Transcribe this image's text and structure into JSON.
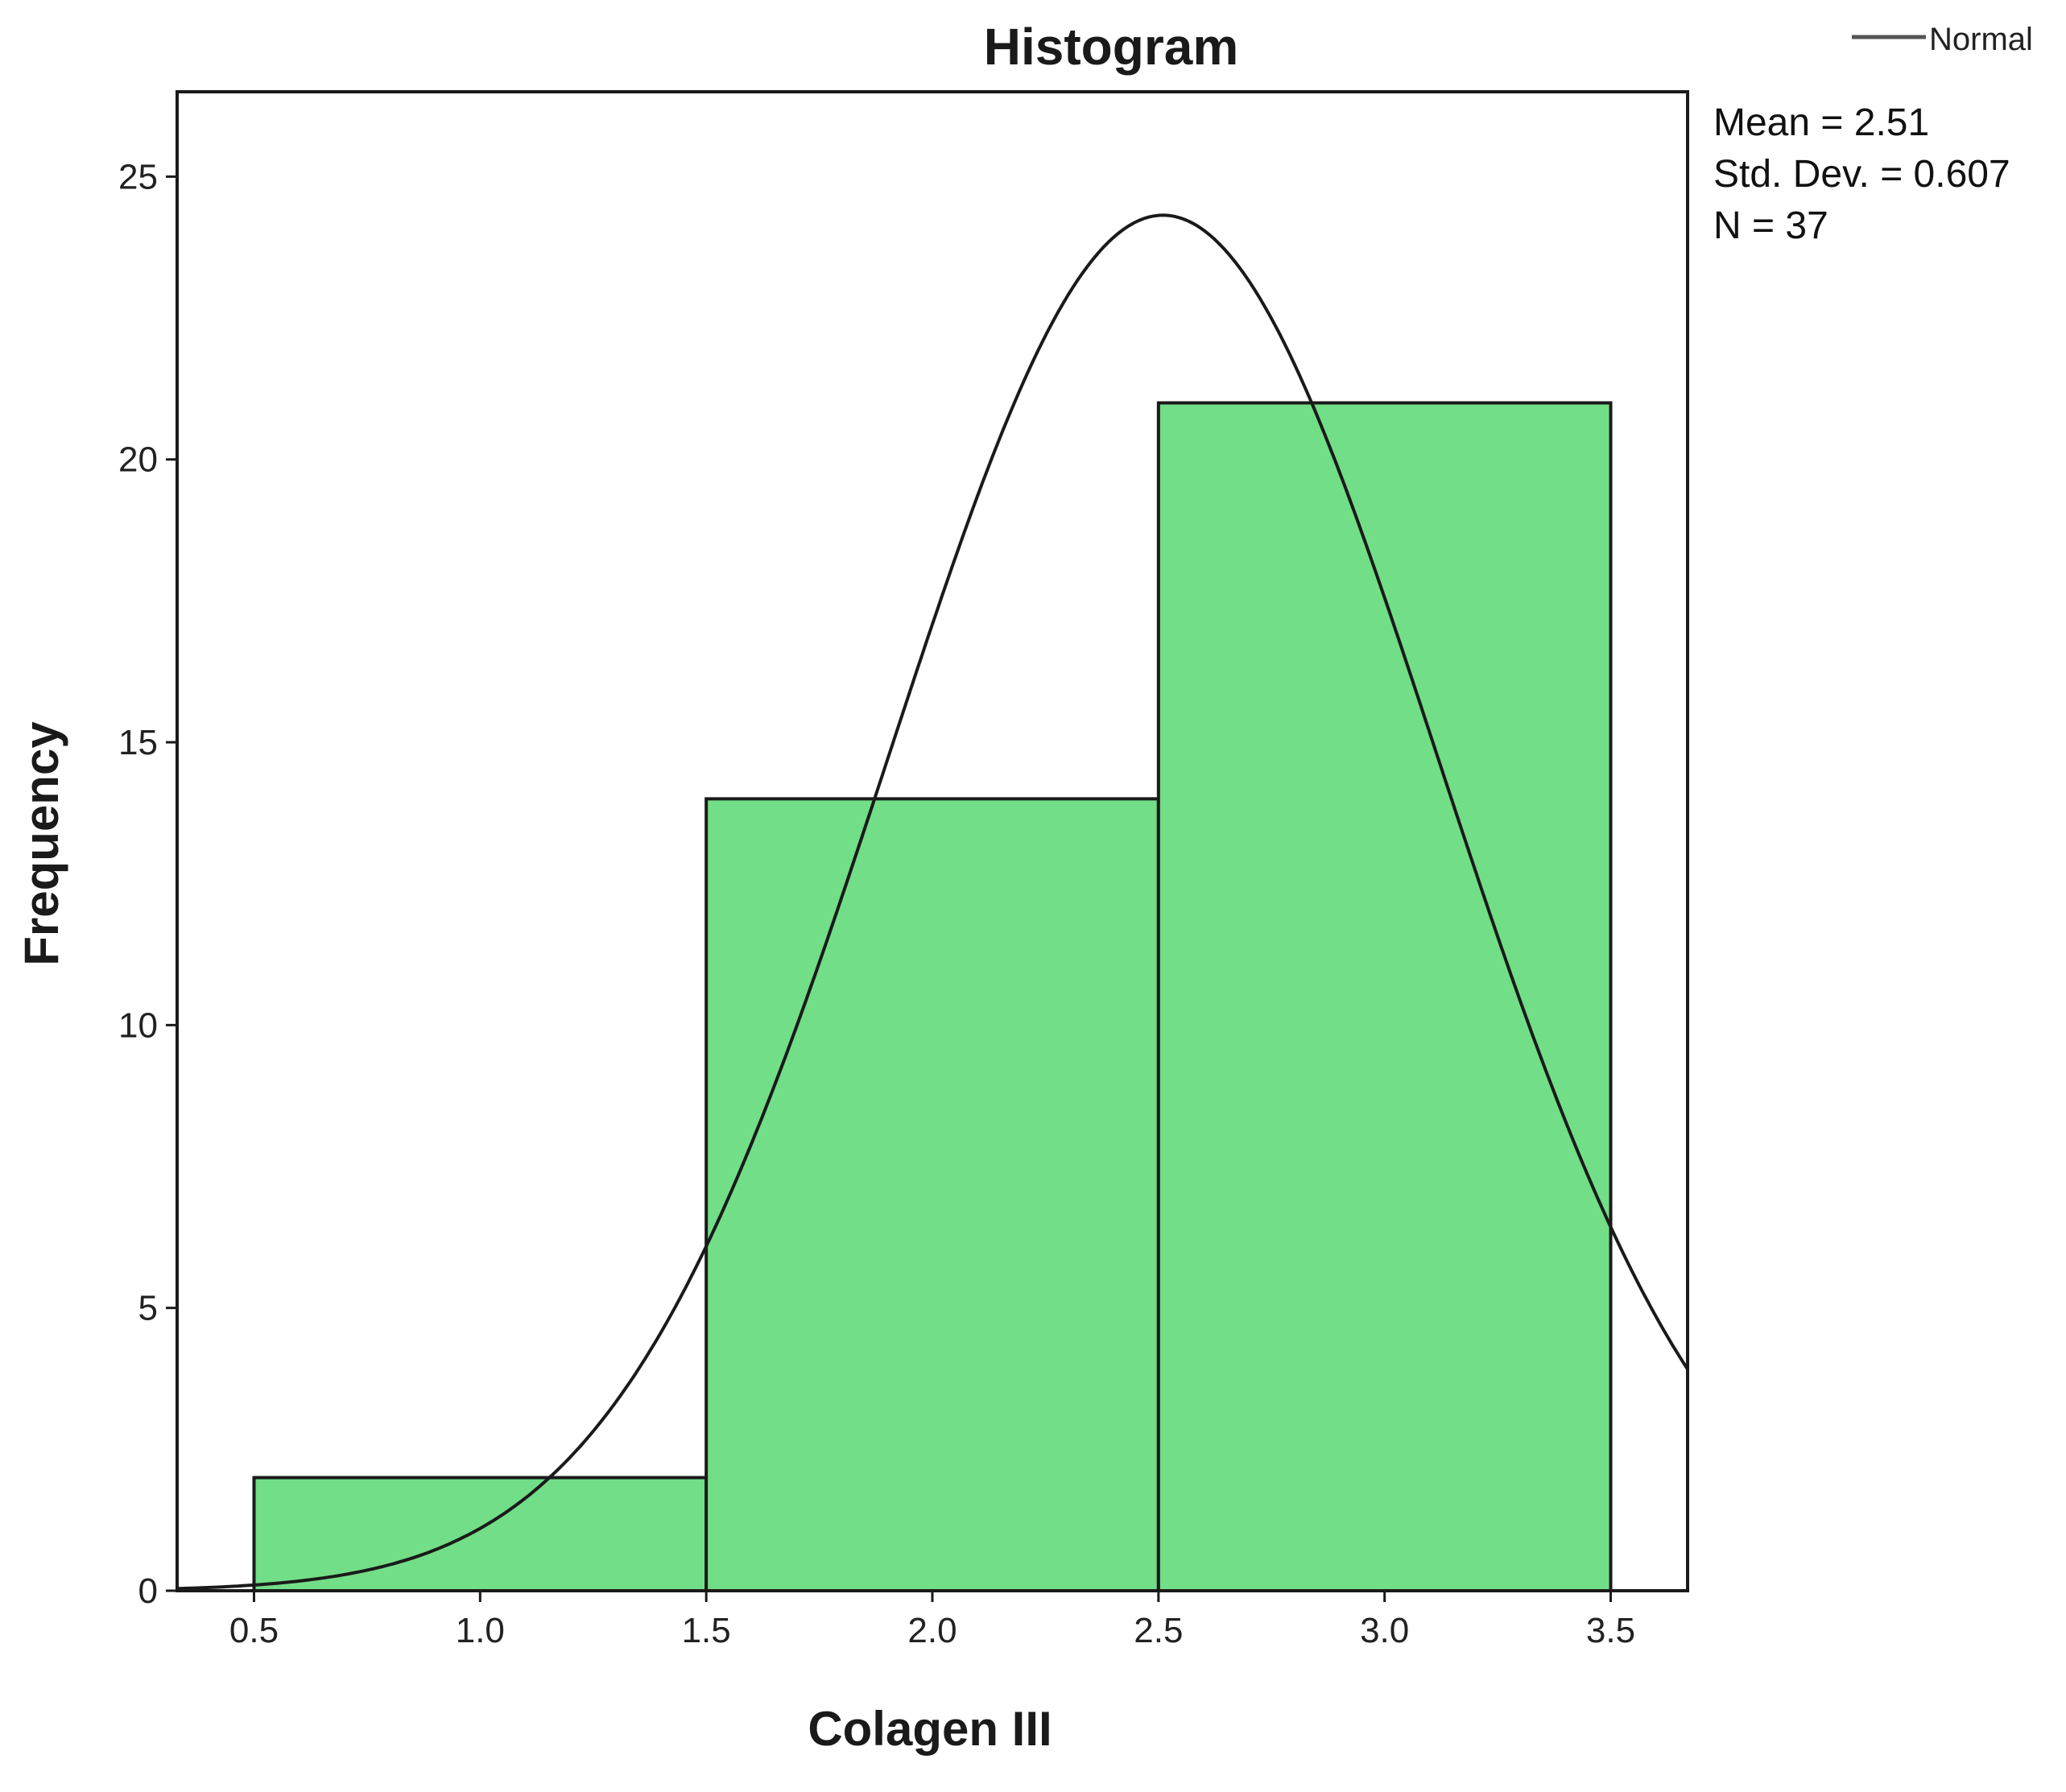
{
  "chart_data": {
    "type": "bar",
    "title": "Histogram",
    "xlabel": "Colagen III",
    "ylabel": "Frequency",
    "bins": [
      {
        "x0": 0.5,
        "x1": 1.5,
        "count": 2
      },
      {
        "x0": 1.5,
        "x1": 2.5,
        "count": 14
      },
      {
        "x0": 2.5,
        "x1": 3.5,
        "count": 21
      }
    ],
    "xlim": [
      0.33,
      3.67
    ],
    "ylim": [
      0,
      26.5
    ],
    "x_ticks": [
      "0.5",
      "1.0",
      "1.5",
      "2.0",
      "2.5",
      "3.0",
      "3.5"
    ],
    "y_ticks": [
      "0",
      "5",
      "10",
      "15",
      "20",
      "25"
    ],
    "normal_curve": {
      "mean": 2.51,
      "std": 0.607,
      "n": 37,
      "bin_width": 1.0
    },
    "legend": {
      "label": "Normal",
      "placement": "top-right"
    },
    "stats": {
      "mean": "Mean = 2.51",
      "std_dev": "Std. Dev. = 0.607",
      "n": "N = 37"
    },
    "colors": {
      "bar_fill": "#72DE88",
      "bar_edge": "#1a1a1a",
      "curve": "#1a1a1a"
    },
    "grid": false
  }
}
